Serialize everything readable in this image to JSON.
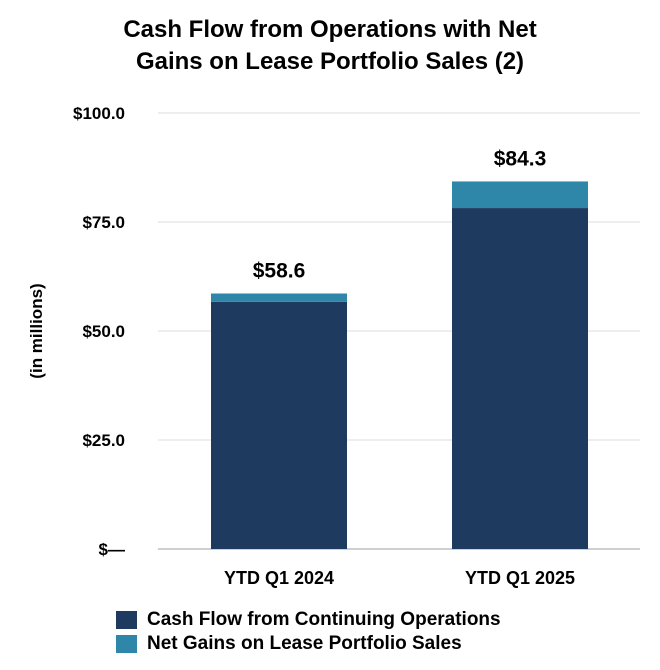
{
  "chart_data": {
    "type": "bar",
    "stacked": true,
    "title_lines": [
      "Cash Flow from Operations with Net",
      "Gains on Lease Portfolio Sales (2)"
    ],
    "ylabel": "(in millions)",
    "xlabel": "",
    "ylim": [
      0,
      100
    ],
    "ytick_values": [
      0,
      25,
      50,
      75,
      100
    ],
    "ytick_labels": [
      "$—",
      "$25.0",
      "$50.0",
      "$75.0",
      "$100.0"
    ],
    "categories": [
      "YTD Q1 2024",
      "YTD Q1 2025"
    ],
    "series": [
      {
        "name": "Cash Flow from Continuing Operations",
        "values": [
          56.7,
          78.2
        ],
        "color": "#1e3a5f"
      },
      {
        "name": "Net Gains on Lease Portfolio Sales",
        "values": [
          1.9,
          6.1
        ],
        "color": "#2e86a8"
      }
    ],
    "totals": [
      58.6,
      84.3
    ],
    "total_labels": [
      "$58.6",
      "$84.3"
    ],
    "grid": true,
    "legend_position": "bottom-left"
  }
}
